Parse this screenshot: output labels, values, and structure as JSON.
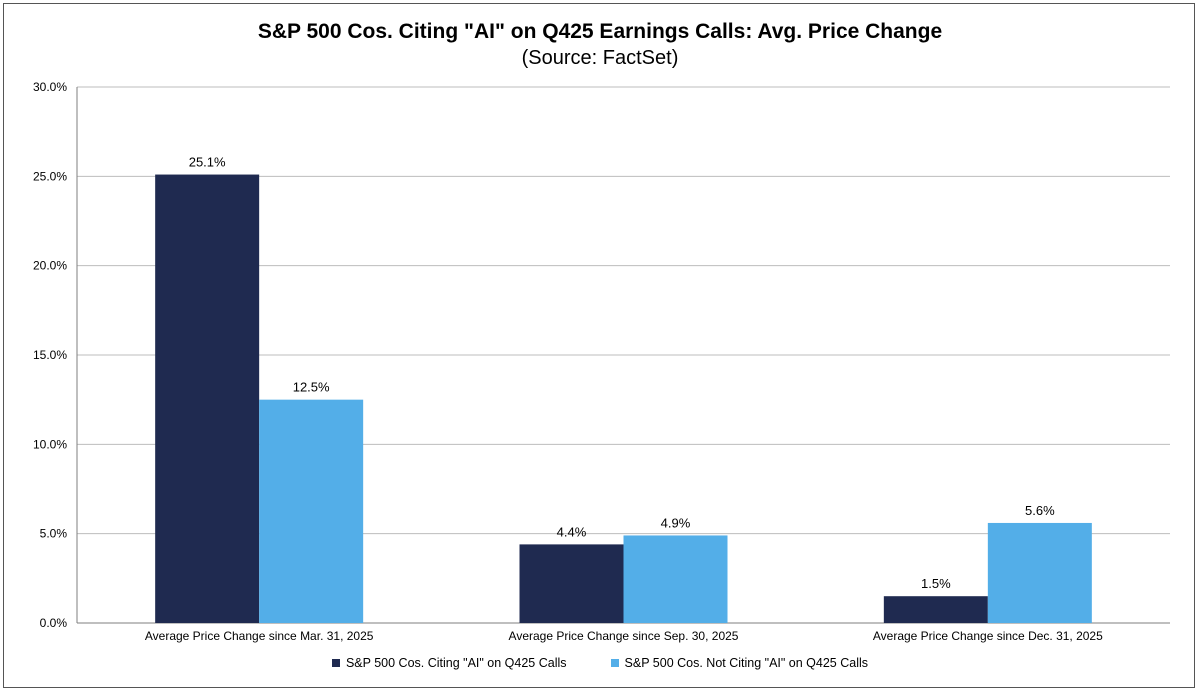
{
  "colors": {
    "series_ai": "#1f2a50",
    "series_not_ai": "#53aee8",
    "grid": "#bdbdbd",
    "axis": "#7f7f7f"
  },
  "chart_data": {
    "type": "bar",
    "title": "S&P 500 Cos. Citing \"AI\" on Q425 Earnings Calls: Avg. Price Change",
    "subtitle": "(Source: FactSet)",
    "categories": [
      "Average Price Change since Mar. 31, 2025",
      "Average Price Change since Sep. 30, 2025",
      "Average Price Change since Dec. 31, 2025"
    ],
    "series": [
      {
        "name": "S&P 500 Cos. Citing \"AI\" on Q425 Calls",
        "values": [
          25.1,
          4.4,
          1.5
        ],
        "labels": [
          "25.1%",
          "4.4%",
          "1.5%"
        ]
      },
      {
        "name": "S&P 500 Cos. Not Citing \"AI\" on Q425 Calls",
        "values": [
          12.5,
          4.9,
          5.6
        ],
        "labels": [
          "12.5%",
          "4.9%",
          "5.6%"
        ]
      }
    ],
    "ylim": [
      0,
      30
    ],
    "yticks": [
      0,
      5,
      10,
      15,
      20,
      25,
      30
    ],
    "ytick_labels": [
      "0.0%",
      "5.0%",
      "10.0%",
      "15.0%",
      "20.0%",
      "25.0%",
      "30.0%"
    ],
    "grid": true,
    "legend_position": "bottom"
  }
}
